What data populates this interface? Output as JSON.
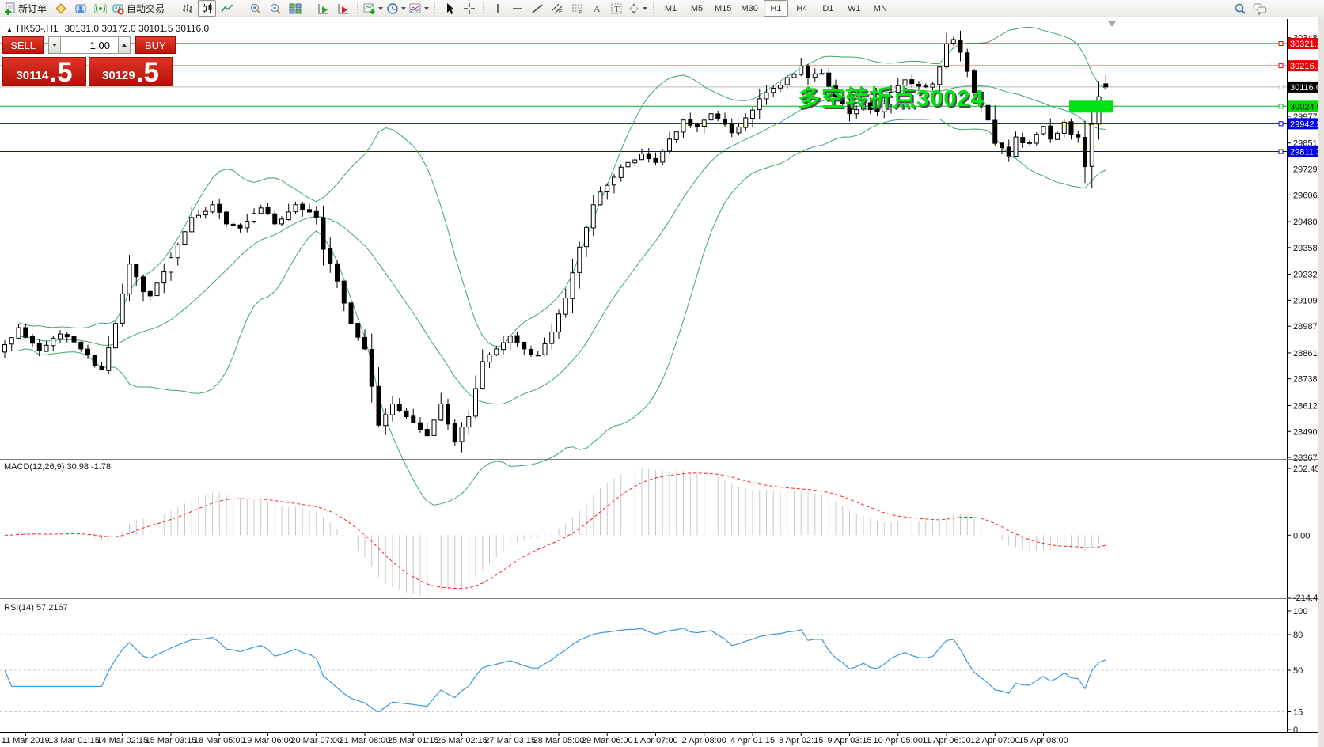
{
  "toolbar": {
    "new_order_label": "新订单",
    "autotrading_label": "自动交易",
    "timeframes": [
      "M1",
      "M5",
      "M15",
      "M30",
      "H1",
      "H4",
      "D1",
      "W1",
      "MN"
    ],
    "active_timeframe": "H1"
  },
  "trade_panel": {
    "sell_label": "SELL",
    "buy_label": "BUY",
    "volume": "1.00",
    "sell_price": "30114",
    "sell_pips": ".5",
    "buy_price": "30129",
    "buy_pips": ".5"
  },
  "chart": {
    "collapse_arrow": "▲",
    "title": "HK50-,H1",
    "ohlc_text": "30131.0 30172.0 30101.5 30116.0"
  },
  "chart_data": {
    "type": "candlestick",
    "symbol": "HK50-",
    "timeframe": "H1",
    "current_ohlc": {
      "open": 30131.0,
      "high": 30172.0,
      "low": 30101.5,
      "close": 30116.0
    },
    "price_axis": {
      "top_price": 30433.0,
      "bottom_price": 28367.5,
      "ticks": [
        30348.5,
        30222.5,
        30100.0,
        29977.5,
        29851.5,
        29729.0,
        29606.5,
        29480.5,
        29358.0,
        29232.0,
        29109.5,
        28987.0,
        28861.0,
        28738.5,
        28612.5,
        28490.0,
        28367.5
      ]
    },
    "hlines": [
      {
        "price": 30321.1,
        "label": "30321.1",
        "color": "#e80000",
        "label_bg": "#e80000",
        "text_color": "#ffffff"
      },
      {
        "price": 30216.1,
        "label": "30216.1",
        "color": "#e80000",
        "label_bg": "#e80000",
        "text_color": "#ffffff"
      },
      {
        "price": 30116.0,
        "label": "30116.0",
        "color": "#b8b8b8",
        "label_bg": "#000000",
        "text_color": "#ffffff",
        "role": "bid-price-line"
      },
      {
        "price": 30024.9,
        "label": "30024.9",
        "color": "#00b020",
        "label_bg": "#00dc00",
        "text_color": "#000000"
      },
      {
        "price": 29942.5,
        "label": "29942.5",
        "color": "#0000e8",
        "label_bg": "#0000e8",
        "text_color": "#ffffff"
      },
      {
        "price": 29811.3,
        "label": "29811.3",
        "color": "#0000e8",
        "label_bg": "#0000e8",
        "text_color": "#ffffff"
      }
    ],
    "annotation": {
      "text": "多空转折点30024",
      "color": "#00e414",
      "marker_price": 30024.9
    },
    "bollinger": {
      "period": 20,
      "deviation": 2,
      "color": "#3fa66b"
    },
    "candles": {
      "count": 160,
      "bull_fill": "#ffffff",
      "bear_fill": "#000000",
      "outline": "#000000",
      "close_waypoints": [
        [
          0,
          28900
        ],
        [
          2,
          28980
        ],
        [
          5,
          28870
        ],
        [
          8,
          28950
        ],
        [
          11,
          28880
        ],
        [
          13,
          28800
        ],
        [
          14,
          28780
        ],
        [
          16,
          29000
        ],
        [
          18,
          29280
        ],
        [
          20,
          29150
        ],
        [
          21,
          29130
        ],
        [
          24,
          29310
        ],
        [
          27,
          29500
        ],
        [
          30,
          29560
        ],
        [
          32,
          29470
        ],
        [
          34,
          29450
        ],
        [
          37,
          29545
        ],
        [
          39,
          29470
        ],
        [
          42,
          29560
        ],
        [
          45,
          29500
        ],
        [
          46,
          29350
        ],
        [
          48,
          29200
        ],
        [
          50,
          29000
        ],
        [
          52,
          28880
        ],
        [
          54,
          28520
        ],
        [
          56,
          28620
        ],
        [
          58,
          28560
        ],
        [
          60,
          28500
        ],
        [
          61,
          28470
        ],
        [
          63,
          28620
        ],
        [
          65,
          28440
        ],
        [
          67,
          28560
        ],
        [
          69,
          28820
        ],
        [
          71,
          28880
        ],
        [
          73,
          28940
        ],
        [
          75,
          28880
        ],
        [
          77,
          28850
        ],
        [
          79,
          28960
        ],
        [
          81,
          29120
        ],
        [
          83,
          29360
        ],
        [
          85,
          29560
        ],
        [
          86,
          29620
        ],
        [
          88,
          29690
        ],
        [
          90,
          29760
        ],
        [
          92,
          29800
        ],
        [
          94,
          29760
        ],
        [
          96,
          29870
        ],
        [
          98,
          29960
        ],
        [
          100,
          29930
        ],
        [
          102,
          29990
        ],
        [
          104,
          29940
        ],
        [
          105,
          29900
        ],
        [
          107,
          29970
        ],
        [
          109,
          30060
        ],
        [
          111,
          30110
        ],
        [
          113,
          30160
        ],
        [
          115,
          30215
        ],
        [
          116,
          30160
        ],
        [
          118,
          30180
        ],
        [
          120,
          30070
        ],
        [
          122,
          29990
        ],
        [
          124,
          30040
        ],
        [
          126,
          30000
        ],
        [
          128,
          30090
        ],
        [
          130,
          30150
        ],
        [
          132,
          30120
        ],
        [
          134,
          30130
        ],
        [
          135,
          30210
        ],
        [
          136,
          30320
        ],
        [
          137,
          30340
        ],
        [
          138,
          30280
        ],
        [
          139,
          30190
        ],
        [
          140,
          30090
        ],
        [
          141,
          30030
        ],
        [
          142,
          29960
        ],
        [
          143,
          29850
        ],
        [
          145,
          29790
        ],
        [
          146,
          29880
        ],
        [
          148,
          29850
        ],
        [
          150,
          29930
        ],
        [
          151,
          29870
        ],
        [
          153,
          29950
        ],
        [
          154,
          29890
        ],
        [
          155,
          29880
        ],
        [
          156,
          29740
        ],
        [
          157,
          29940
        ],
        [
          158,
          30070
        ],
        [
          159,
          30116
        ]
      ]
    },
    "indicators": {
      "macd": {
        "label": "MACD(12,26,9) 30.98 -1.78",
        "fast": 12,
        "slow": 26,
        "signal": 9,
        "value": 30.98,
        "signal_value": -1.78,
        "axis_labels": [
          "252.45",
          "0.00",
          "-214.47"
        ],
        "histogram_color": "#c8c8c8",
        "signal_color": "#ff2020"
      },
      "rsi": {
        "label": "RSI(14) 57.2167",
        "period": 14,
        "current": 57.2167,
        "axis_labels": [
          "100",
          "80",
          "50",
          "15",
          "0"
        ],
        "level_values": [
          100,
          80,
          50,
          15,
          0
        ],
        "dashed_levels": [
          80,
          50,
          15
        ],
        "color": "#3d96e0"
      }
    },
    "time_labels": [
      "11 Mar 2019",
      "13 Mar 01:15",
      "14 Mar 02:15",
      "15 Mar 03:15",
      "18 Mar 05:00",
      "19 Mar 06:00",
      "20 Mar 07:00",
      "21 Mar 08:00",
      "25 Mar 01:15",
      "26 Mar 02:15",
      "27 Mar 03:15",
      "28 Mar 05:00",
      "29 Mar 06:00",
      "1 Apr 07:00",
      "2 Apr 08:00",
      "4 Apr 01:15",
      "8 Apr 02:15",
      "9 Apr 03:15",
      "10 Apr 05:00",
      "11 Apr 06:00",
      "12 Apr 07:00",
      "15 Apr 08:00"
    ]
  }
}
